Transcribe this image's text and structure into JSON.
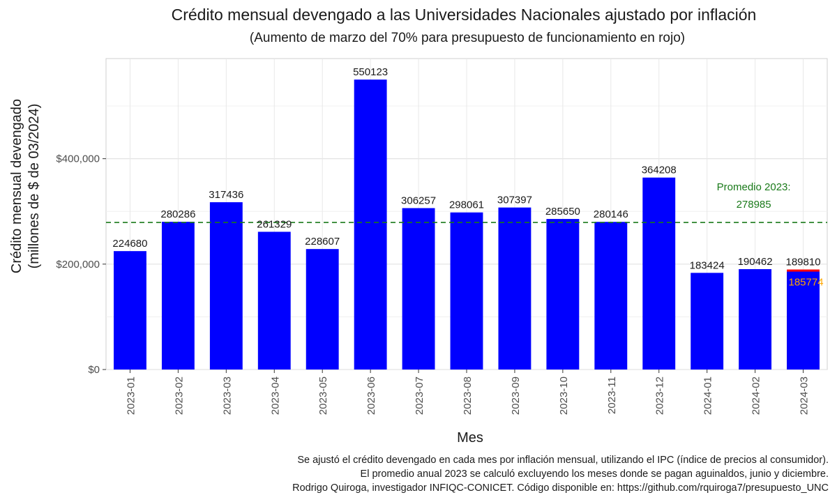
{
  "chart_data": {
    "type": "bar",
    "title": "Crédito mensual devengado a las Universidades Nacionales ajustado por inflación",
    "subtitle": "(Aumento de marzo del 70% para presupuesto de funcionamiento en rojo)",
    "xlabel": "Mes",
    "ylabel_lines": [
      "Crédito mensual devengado",
      "(millones de $ de 03/2024)"
    ],
    "categories": [
      "2023-01",
      "2023-02",
      "2023-03",
      "2023-04",
      "2023-05",
      "2023-06",
      "2023-07",
      "2023-08",
      "2023-09",
      "2023-10",
      "2023-11",
      "2023-12",
      "2024-01",
      "2024-02",
      "2024-03"
    ],
    "values": [
      224680,
      280286,
      317436,
      261329,
      228607,
      550123,
      306257,
      298061,
      307397,
      285650,
      280146,
      364208,
      183424,
      190462,
      189810
    ],
    "highlight": {
      "category": "2024-03",
      "base_value": 185774,
      "color": "#ff0000",
      "label_color": "#ffa500"
    },
    "bar_color": "#0000ff",
    "ylim": [
      0,
      590000
    ],
    "yticks": [
      0,
      200000,
      400000
    ],
    "ytick_labels": [
      "$0",
      "$200,000",
      "$400,000"
    ],
    "reference_line": {
      "value": 278985,
      "label_lines": [
        "Promedio 2023:",
        "278985"
      ],
      "color": "#1a7a1a",
      "style": "dashed"
    },
    "grid": true,
    "legend": "none"
  },
  "caption_lines": [
    "Se ajustó el crédito devengado en cada mes por inflación mensual, utilizando el IPC (índice de precios al consumidor).",
    "El promedio anual 2023 se calculó excluyendo los meses donde se pagan aguinaldos, junio y diciembre.",
    "Rodrigo Quiroga, investigador INFIQC-CONICET. Código disponible en: https://github.com/rquiroga7/presupuesto_UNC"
  ]
}
